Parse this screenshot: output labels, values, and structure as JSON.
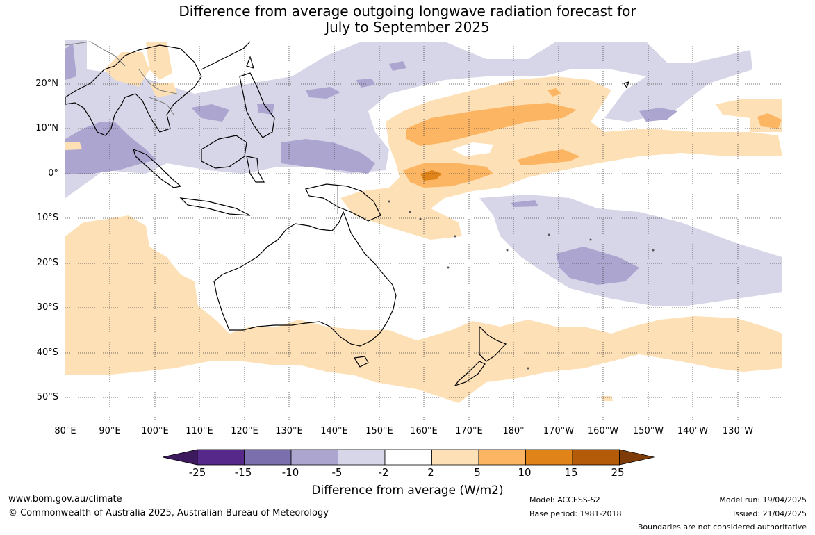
{
  "title_line1": "Difference from average outgoing longwave radiation forecast for",
  "title_line2": "July to September 2025",
  "lat_labels": [
    "20°N",
    "10°N",
    "0°",
    "10°S",
    "20°S",
    "30°S",
    "40°S",
    "50°S"
  ],
  "lon_labels": [
    "80°E",
    "90°E",
    "100°E",
    "110°E",
    "120°E",
    "130°E",
    "140°E",
    "150°E",
    "160°E",
    "170°E",
    "180°",
    "170°W",
    "160°W",
    "150°W",
    "140°W",
    "130°W"
  ],
  "colorbar": {
    "ticks": [
      "-25",
      "-15",
      "-10",
      "-5",
      "-2",
      "2",
      "5",
      "10",
      "15",
      "25"
    ],
    "colors": [
      "#3d1a5e",
      "#56288a",
      "#7b6fae",
      "#aba5cf",
      "#d7d6e8",
      "#ffffff",
      "#fde0b5",
      "#fbb563",
      "#e08419",
      "#b35b08",
      "#7f3b08"
    ],
    "title": "Difference from average (W/m2)"
  },
  "footer": {
    "website": "www.bom.gov.au/climate",
    "copyright": "© Commonwealth of Australia 2025, Australian Bureau of Meteorology",
    "model": "Model: ACCESS-S2",
    "base_period": "Base period: 1981-2018",
    "model_run": "Model run: 19/04/2025",
    "issued": "Issued: 21/04/2025",
    "disclaimer": "Boundaries are not considered authoritative"
  }
}
